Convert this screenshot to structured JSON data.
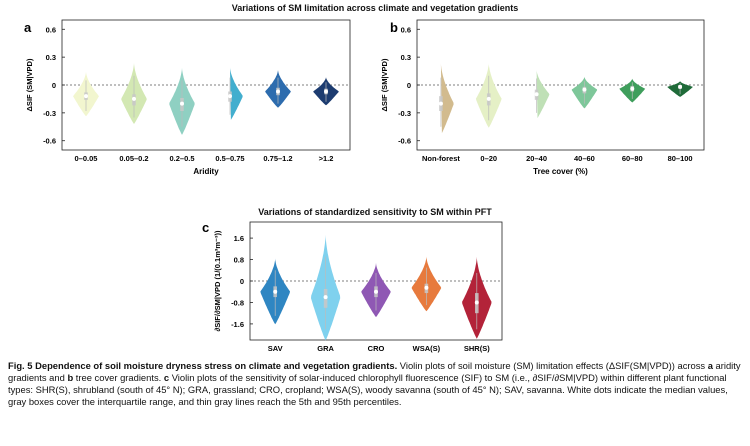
{
  "titles": {
    "top": "Variations of SM limitation across climate and vegetation gradients",
    "bottom": "Variations of standardized sensitivity to SM within PFT"
  },
  "caption": {
    "fig_label": "Fig. 5 Dependence of soil moisture dryness stress on climate and vegetation gradients.",
    "line1_rest": "Violin plots of soil moisture (SM) limitation effects (ΔSIF(SM|VPD)) across",
    "line1_a": "a",
    "line1_mid": "aridity gradients and",
    "line1_b": "b",
    "line1_mid2": "tree cover gradients.",
    "line1_c": "c",
    "line1_end": "Violin plots of the sensitivity of solar-induced chlorophyll fluorescence (SIF) to SM (i.e.,",
    "line2": "∂SIF/∂SM|VPD) within different plant functional types: SHR(S), shrubland (south of 45° N); GRA, grassland; CRO, cropland; WSA(S), woody savanna (south of 45° N); SAV, savanna. White dots indicate the median values, gray boxes cover the interquartile range, and thin gray lines reach the 5th and 95th percentiles."
  },
  "chart_data": [
    {
      "panel": "a",
      "type": "violin",
      "xlabel": "Aridity",
      "ylabel": "ΔSIF (SM|VPD)",
      "ylim": [
        -0.7,
        0.7
      ],
      "yticks": [
        "0.6",
        "0.3",
        "0",
        "-0.3",
        "-0.6"
      ],
      "yticks_values": [
        0.6,
        0.3,
        0,
        -0.3,
        -0.6
      ],
      "categories": [
        "0–0.05",
        "0.05–0.2",
        "0.2–0.5",
        "0.5–0.75",
        "0.75–1.2",
        ">1.2"
      ],
      "medians": [
        -0.12,
        -0.15,
        -0.2,
        -0.12,
        -0.07,
        -0.07
      ],
      "q1": [
        -0.16,
        -0.22,
        -0.28,
        -0.18,
        -0.11,
        -0.1
      ],
      "q3": [
        -0.08,
        -0.1,
        -0.14,
        -0.07,
        -0.03,
        -0.04
      ],
      "p5": [
        -0.28,
        -0.35,
        -0.45,
        -0.32,
        -0.2,
        -0.18
      ],
      "p95": [
        0.05,
        0.1,
        0.05,
        0.08,
        0.08,
        0.03
      ],
      "colors": [
        "#f2f6cf",
        "#d3e8b3",
        "#8fd0c2",
        "#42aece",
        "#2d6cae",
        "#1d3c70"
      ]
    },
    {
      "panel": "b",
      "type": "violin",
      "xlabel": "Tree cover (%)",
      "ylabel": "ΔSIF (SM|VPD)",
      "ylim": [
        -0.7,
        0.7
      ],
      "yticks": [
        "0.6",
        "0.3",
        "0",
        "-0.3",
        "-0.6"
      ],
      "yticks_values": [
        0.6,
        0.3,
        0,
        -0.3,
        -0.6
      ],
      "categories": [
        "Non-forest",
        "0–20",
        "20–40",
        "40–60",
        "60–80",
        "80–100"
      ],
      "medians": [
        -0.2,
        -0.15,
        -0.1,
        -0.05,
        -0.04,
        -0.02
      ],
      "q1": [
        -0.28,
        -0.22,
        -0.16,
        -0.09,
        -0.07,
        -0.04
      ],
      "q3": [
        -0.12,
        -0.09,
        -0.05,
        -0.02,
        -0.01,
        0.0
      ],
      "p5": [
        -0.45,
        -0.38,
        -0.3,
        -0.2,
        -0.15,
        -0.1
      ],
      "p95": [
        0.08,
        0.1,
        0.07,
        0.04,
        0.03,
        0.02
      ],
      "colors": [
        "#d2bb8e",
        "#e5f0c6",
        "#bfe0b6",
        "#7ec79a",
        "#3f9e5c",
        "#1f6b39"
      ]
    },
    {
      "panel": "c",
      "type": "violin",
      "xlabel": "",
      "ylabel": "∂SIF/∂SM|VPD (1/(0.1m³m⁻³))",
      "ylim": [
        -2.2,
        2.2
      ],
      "yticks": [
        "1.6",
        "0.8",
        "0",
        "-0.8",
        "-1.6"
      ],
      "yticks_values": [
        1.6,
        0.8,
        0,
        -0.8,
        -1.6
      ],
      "categories": [
        "SAV",
        "GRA",
        "CRO",
        "WSA(S)",
        "SHR(S)"
      ],
      "medians": [
        -0.4,
        -0.6,
        -0.4,
        -0.25,
        -0.8
      ],
      "q1": [
        -0.6,
        -1.0,
        -0.6,
        -0.45,
        -1.2
      ],
      "q3": [
        -0.2,
        -0.3,
        -0.2,
        -0.1,
        -0.45
      ],
      "p5": [
        -1.3,
        -1.8,
        -1.1,
        -0.9,
        -1.8
      ],
      "p95": [
        0.4,
        0.9,
        0.3,
        0.5,
        0.3
      ],
      "colors": [
        "#2f86c2",
        "#7fd1ee",
        "#8f58b4",
        "#e77a3d",
        "#b32339"
      ]
    }
  ]
}
